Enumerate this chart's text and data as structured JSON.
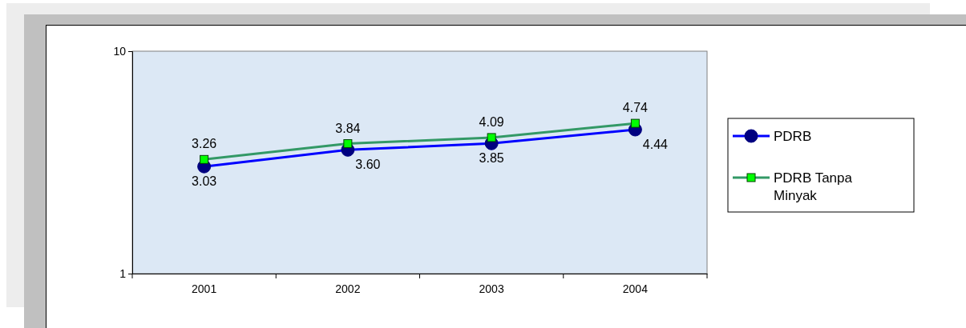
{
  "chart_data": {
    "type": "line",
    "categories": [
      "2001",
      "2002",
      "2003",
      "2004"
    ],
    "series": [
      {
        "name": "PDRB",
        "color": "#0000ff",
        "marker": "circle",
        "values": [
          3.03,
          3.6,
          3.85,
          4.44
        ],
        "value_labels": [
          "3.03",
          "3.60",
          "3.85",
          "4.44"
        ]
      },
      {
        "name": "PDRB Tanpa Minyak",
        "color": "#339966",
        "marker": "square",
        "values": [
          3.26,
          3.84,
          4.09,
          4.74
        ],
        "value_labels": [
          "3.26",
          "3.84",
          "4.09",
          "4.74"
        ]
      }
    ],
    "log": true,
    "ylim": [
      1,
      10
    ],
    "yticks": [
      1,
      10
    ],
    "grid": false,
    "legend": "right"
  }
}
